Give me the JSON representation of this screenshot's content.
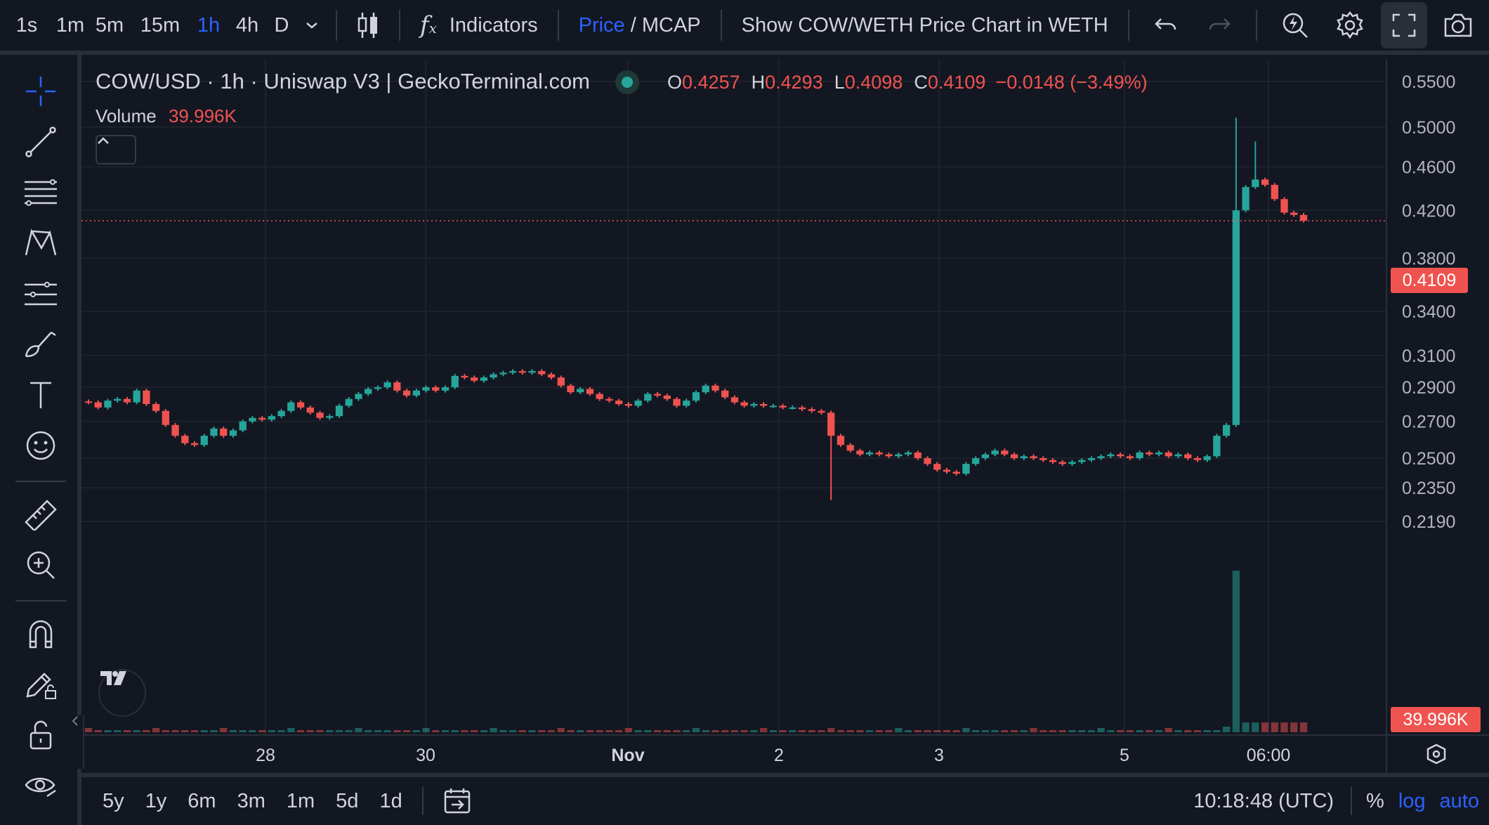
{
  "topbar": {
    "intervals": [
      "1s",
      "1m",
      "5m",
      "15m",
      "1h",
      "4h",
      "D"
    ],
    "active_interval": "1h",
    "indicators_label": "Indicators",
    "price_label": "Price",
    "slash": " / ",
    "mcap_label": "MCAP",
    "show_chart_label": "Show COW/WETH Price Chart in WETH"
  },
  "legend": {
    "symbol": "COW/USD · 1h · Uniswap V3 | GeckoTerminal.com",
    "o_label": "O",
    "o_value": "0.4257",
    "h_label": "H",
    "h_value": "0.4293",
    "l_label": "L",
    "l_value": "0.4098",
    "c_label": "C",
    "c_value": "0.4109",
    "change": "−0.0148 (−3.49%)",
    "volume_label": "Volume",
    "volume_value": "39.996K"
  },
  "price_axis": {
    "labels": [
      "0.5500",
      "0.5000",
      "0.4600",
      "0.4200",
      "0.3800",
      "0.3400",
      "0.3100",
      "0.2900",
      "0.2700",
      "0.2500",
      "0.2350",
      "0.2190"
    ],
    "current_price_badge": "0.4109",
    "volume_badge": "39.996K"
  },
  "time_axis": {
    "labels": [
      "28",
      "30",
      "Nov",
      "2",
      "3",
      "5",
      "06:00"
    ]
  },
  "bottombar": {
    "ranges": [
      "5y",
      "1y",
      "6m",
      "3m",
      "1m",
      "5d",
      "1d"
    ],
    "clock": "10:18:48 (UTC)",
    "percent_label": "%",
    "log_label": "log",
    "auto_label": "auto"
  },
  "colors": {
    "up": "#26a69a",
    "down": "#ef5350",
    "accent": "#2962ff",
    "background": "#131722"
  },
  "chart_data": {
    "type": "candlestick",
    "title": "COW/USD · 1h · Uniswap V3 | GeckoTerminal.com",
    "ylim": [
      0.21,
      0.56
    ],
    "y_scale": "log",
    "x_ticks": [
      "28",
      "30",
      "Nov",
      "2",
      "3",
      "5",
      "06:00"
    ],
    "y_ticks": [
      0.55,
      0.5,
      0.46,
      0.42,
      0.38,
      0.34,
      0.31,
      0.29,
      0.27,
      0.25,
      0.235,
      0.219
    ],
    "last_price": 0.4109,
    "grid": true,
    "candles_close": [
      0.281,
      0.278,
      0.282,
      0.283,
      0.281,
      0.288,
      0.28,
      0.276,
      0.268,
      0.262,
      0.258,
      0.257,
      0.262,
      0.266,
      0.262,
      0.265,
      0.27,
      0.272,
      0.271,
      0.273,
      0.276,
      0.281,
      0.278,
      0.275,
      0.272,
      0.273,
      0.279,
      0.283,
      0.286,
      0.289,
      0.29,
      0.293,
      0.288,
      0.285,
      0.288,
      0.29,
      0.288,
      0.29,
      0.297,
      0.296,
      0.294,
      0.296,
      0.298,
      0.299,
      0.3,
      0.299,
      0.3,
      0.298,
      0.296,
      0.291,
      0.287,
      0.289,
      0.286,
      0.283,
      0.282,
      0.28,
      0.279,
      0.282,
      0.286,
      0.285,
      0.283,
      0.279,
      0.282,
      0.287,
      0.291,
      0.288,
      0.284,
      0.281,
      0.279,
      0.28,
      0.279,
      0.279,
      0.278,
      0.278,
      0.277,
      0.276,
      0.275,
      0.262,
      0.257,
      0.254,
      0.252,
      0.253,
      0.252,
      0.251,
      0.252,
      0.253,
      0.25,
      0.247,
      0.244,
      0.243,
      0.242,
      0.247,
      0.25,
      0.252,
      0.254,
      0.252,
      0.25,
      0.251,
      0.25,
      0.249,
      0.248,
      0.247,
      0.248,
      0.249,
      0.25,
      0.251,
      0.252,
      0.251,
      0.25,
      0.253,
      0.252,
      0.253,
      0.251,
      0.252,
      0.25,
      0.249,
      0.251,
      0.262,
      0.268,
      0.42,
      0.441,
      0.448,
      0.443,
      0.43,
      0.418,
      0.416,
      0.411
    ]
  }
}
